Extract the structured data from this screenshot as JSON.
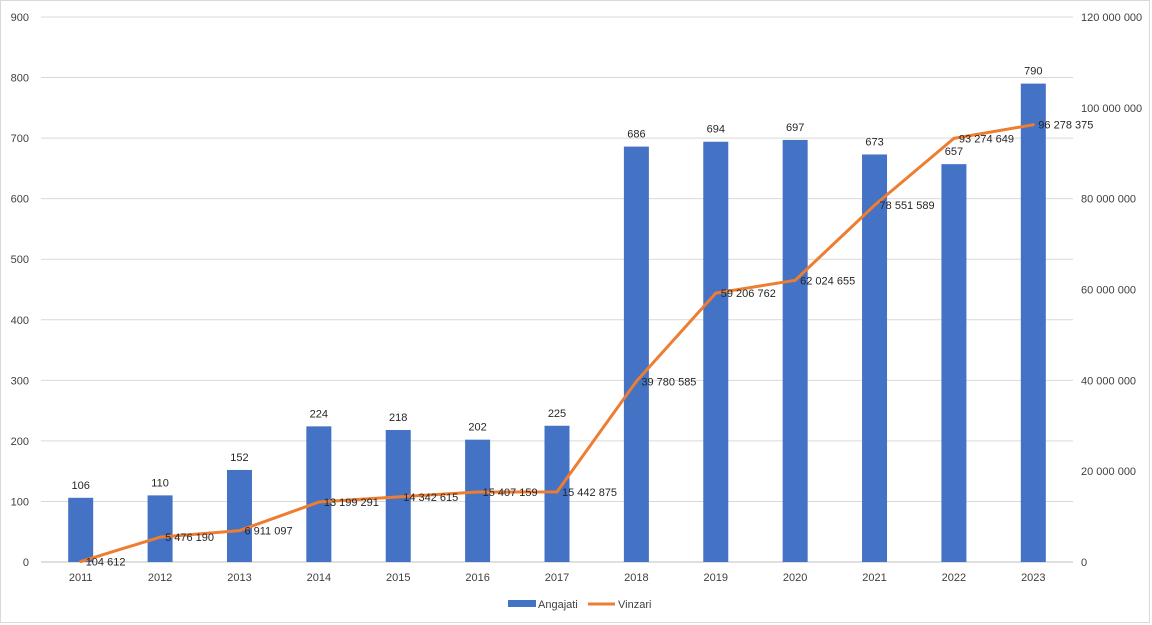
{
  "chart_data": {
    "type": "bar+line",
    "categories": [
      "2011",
      "2012",
      "2013",
      "2014",
      "2015",
      "2016",
      "2017",
      "2018",
      "2019",
      "2020",
      "2021",
      "2022",
      "2023"
    ],
    "series": [
      {
        "name": "Angajati",
        "type": "bar",
        "axis": "left",
        "color": "#4472C4",
        "values": [
          106,
          110,
          152,
          224,
          218,
          202,
          225,
          686,
          694,
          697,
          673,
          657,
          790
        ],
        "labels": [
          "106",
          "110",
          "152",
          "224",
          "218",
          "202",
          "225",
          "686",
          "694",
          "697",
          "673",
          "657",
          "790"
        ]
      },
      {
        "name": "Vinzari",
        "type": "line",
        "axis": "right",
        "color": "#ED7D31",
        "values": [
          104612,
          5476190,
          6911097,
          13199291,
          14342615,
          15407159,
          15442875,
          39780585,
          59206762,
          62024655,
          78551589,
          93274649,
          96278375
        ],
        "labels": [
          "104 612",
          "5 476 190",
          "6 911 097",
          "13 199 291",
          "14 342 615",
          "15 407 159",
          "15 442 875",
          "39 780 585",
          "59 206 762",
          "62 024 655",
          "78 551 589",
          "93 274 649",
          "96 278 375"
        ]
      }
    ],
    "y_left": {
      "min": 0,
      "max": 900,
      "ticks": [
        "0",
        "100",
        "200",
        "300",
        "400",
        "500",
        "600",
        "700",
        "800",
        "900"
      ]
    },
    "y_right": {
      "min": 0,
      "max": 120000000,
      "ticks": [
        "0",
        "20 000 000",
        "40 000 000",
        "60 000 000",
        "80 000 000",
        "100 000 000",
        "120 000 000"
      ]
    },
    "grid": true,
    "legend_position": "bottom"
  }
}
